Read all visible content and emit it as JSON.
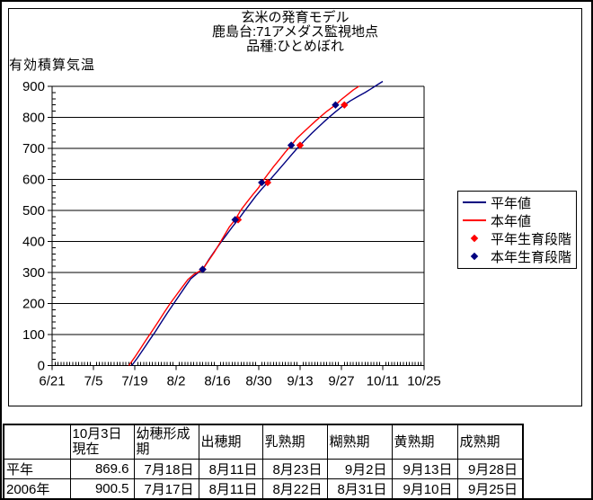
{
  "chart_data": {
    "type": "line",
    "title_lines": [
      "玄米の発育モデル",
      "鹿島台:71アメダス監視地点",
      "品種:ひとめぼれ"
    ],
    "y_axis_title": "有効積算気温",
    "x_unit": "days since 6/21",
    "x_tick_labels": [
      "6/21",
      "7/5",
      "7/19",
      "8/2",
      "8/16",
      "8/30",
      "9/13",
      "9/27",
      "10/11",
      "10/25"
    ],
    "x_tick_days": [
      0,
      14,
      28,
      42,
      56,
      70,
      84,
      98,
      112,
      126
    ],
    "y_ticks": [
      0,
      100,
      200,
      300,
      400,
      500,
      600,
      700,
      800,
      900
    ],
    "ylim": [
      0,
      900
    ],
    "xlim_days": [
      0,
      126
    ],
    "y_minor_step": 20,
    "x_minor_step_days": 1,
    "grid": "horizontal major gridlines only",
    "legend_position": "middle-right",
    "series": [
      {
        "name": "平年値",
        "kind": "line",
        "color": "#000080",
        "points": [
          [
            27,
            0
          ],
          [
            29,
            26
          ],
          [
            31,
            54
          ],
          [
            33,
            82
          ],
          [
            35,
            110
          ],
          [
            37,
            140
          ],
          [
            39,
            169
          ],
          [
            41,
            197
          ],
          [
            43,
            225
          ],
          [
            45,
            253
          ],
          [
            47,
            280
          ],
          [
            49,
            296
          ],
          [
            51,
            310
          ],
          [
            53,
            340
          ],
          [
            55,
            368
          ],
          [
            57,
            395
          ],
          [
            59,
            421
          ],
          [
            61,
            446
          ],
          [
            63,
            470
          ],
          [
            65,
            496
          ],
          [
            67,
            521
          ],
          [
            69,
            546
          ],
          [
            71,
            569
          ],
          [
            73,
            590
          ],
          [
            75,
            612
          ],
          [
            77,
            634
          ],
          [
            79,
            656
          ],
          [
            81,
            678
          ],
          [
            83,
            700
          ],
          [
            84,
            710
          ],
          [
            86,
            730
          ],
          [
            88,
            749
          ],
          [
            90,
            767
          ],
          [
            92,
            785
          ],
          [
            94,
            802
          ],
          [
            96,
            818
          ],
          [
            98,
            833
          ],
          [
            99,
            840
          ],
          [
            101,
            853
          ],
          [
            103,
            864
          ],
          [
            104,
            869.6
          ],
          [
            106,
            880
          ],
          [
            108,
            892
          ],
          [
            110,
            904
          ],
          [
            112,
            916
          ]
        ]
      },
      {
        "name": "本年値",
        "kind": "line",
        "color": "#ff0000",
        "points": [
          [
            26,
            0
          ],
          [
            28,
            27
          ],
          [
            30,
            56
          ],
          [
            32,
            85
          ],
          [
            34,
            113
          ],
          [
            36,
            142
          ],
          [
            38,
            172
          ],
          [
            40,
            200
          ],
          [
            42,
            226
          ],
          [
            44,
            252
          ],
          [
            46,
            277
          ],
          [
            48,
            294
          ],
          [
            51,
            310
          ],
          [
            53,
            338
          ],
          [
            55,
            366
          ],
          [
            57,
            398
          ],
          [
            59,
            430
          ],
          [
            60,
            446
          ],
          [
            62,
            470
          ],
          [
            64,
            502
          ],
          [
            66,
            527
          ],
          [
            68,
            551
          ],
          [
            70,
            574
          ],
          [
            71,
            590
          ],
          [
            73,
            616
          ],
          [
            75,
            641
          ],
          [
            77,
            664
          ],
          [
            79,
            688
          ],
          [
            81,
            710
          ],
          [
            83,
            733
          ],
          [
            85,
            751
          ],
          [
            87,
            769
          ],
          [
            89,
            786
          ],
          [
            91,
            803
          ],
          [
            93,
            819
          ],
          [
            96,
            840
          ],
          [
            98,
            858
          ],
          [
            100,
            873
          ],
          [
            102,
            888
          ],
          [
            104,
            900.5
          ]
        ]
      },
      {
        "name": "平年生育段階",
        "kind": "scatter",
        "color": "#ff0000",
        "points": [
          [
            51,
            310
          ],
          [
            63,
            470
          ],
          [
            73,
            590
          ],
          [
            84,
            710
          ],
          [
            99,
            840
          ]
        ]
      },
      {
        "name": "本年生育段階",
        "kind": "scatter",
        "color": "#000080",
        "points": [
          [
            51,
            310
          ],
          [
            62,
            470
          ],
          [
            71,
            590
          ],
          [
            81,
            710
          ],
          [
            96,
            840
          ]
        ]
      }
    ]
  },
  "table": {
    "headers": [
      "",
      "10月3日\n現在",
      "幼穂形成\n期",
      "出穂期",
      "乳熟期",
      "糊熟期",
      "黄熟期",
      "成熟期"
    ],
    "rows": [
      {
        "label": "平年",
        "values": [
          "869.6",
          "7月18日",
          "8月11日",
          "8月23日",
          "9月2日",
          "9月13日",
          "9月28日"
        ]
      },
      {
        "label": "2006年",
        "values": [
          "900.5",
          "7月17日",
          "8月11日",
          "8月22日",
          "8月31日",
          "9月10日",
          "9月25日"
        ]
      }
    ]
  }
}
